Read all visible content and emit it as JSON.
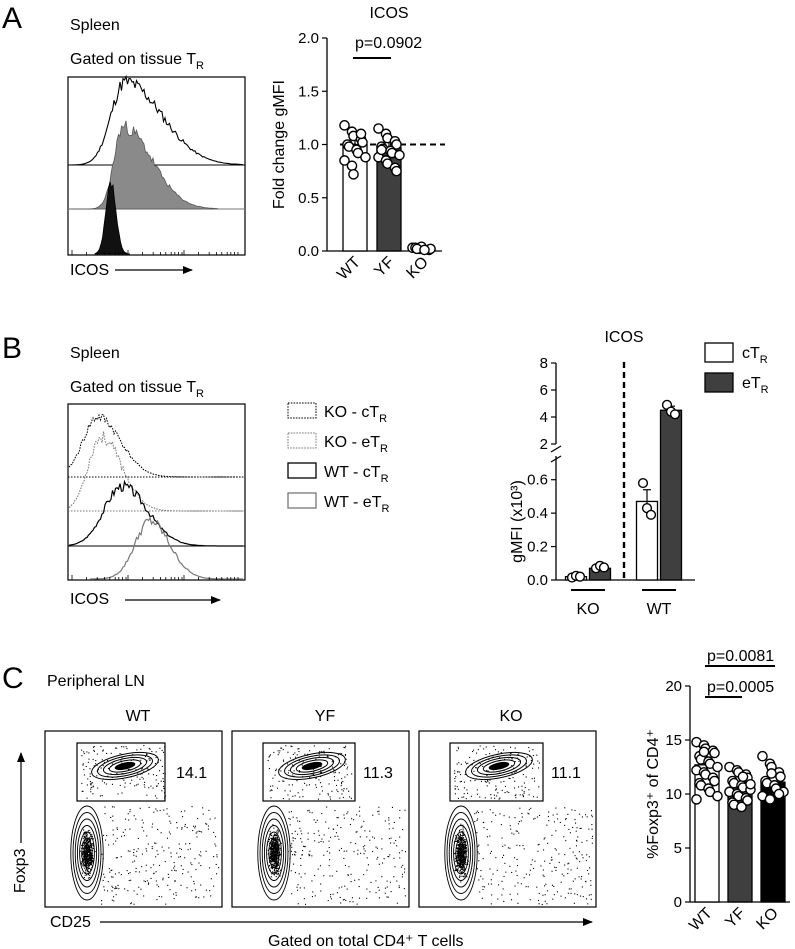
{
  "panels": {
    "A": {
      "letter": "A",
      "tissue": "Spleen",
      "gate_main": "Gated on tissue T",
      "gate_sub": "R",
      "xaxis": "ICOS"
    },
    "B": {
      "letter": "B",
      "tissue": "Spleen",
      "gate_main": "Gated on tissue T",
      "gate_sub": "R",
      "xaxis": "ICOS",
      "legend": [
        {
          "main": "KO - cT",
          "sub": "R"
        },
        {
          "main": "KO - eT",
          "sub": "R"
        },
        {
          "main": "WT - cT",
          "sub": "R"
        },
        {
          "main": "WT - eT",
          "sub": "R"
        }
      ]
    },
    "C": {
      "letter": "C",
      "tissue": "Peripheral LN",
      "plots": [
        {
          "label": "WT",
          "percent": "14.1"
        },
        {
          "label": "YF",
          "percent": "11.3"
        },
        {
          "label": "KO",
          "percent": "11.1"
        }
      ],
      "yaxis": "Foxp3",
      "xaxis": "CD25",
      "footer": "Gated on total CD4⁺ T cells"
    }
  },
  "chart_data": [
    {
      "id": "A-bar",
      "type": "bar",
      "title": "ICOS",
      "ylabel": "Fold change gMFI",
      "categories": [
        "WT",
        "YF",
        "KO"
      ],
      "values": [
        1.0,
        0.97,
        0.02
      ],
      "errors": [
        0.1,
        0.1,
        0.01
      ],
      "ylim": [
        0,
        2.0
      ],
      "yticks": [
        "0.0",
        "0.5",
        "1.0",
        "1.5",
        "2.0"
      ],
      "reference_line": 1.0,
      "annotation": {
        "text": "p=0.0902",
        "between": [
          "WT",
          "YF"
        ]
      },
      "colors": [
        "#ffffff",
        "#3f3f3f",
        "#ffffff"
      ],
      "points": [
        [
          1.18,
          1.12,
          1.08,
          1.05,
          1.02,
          1.0,
          0.98,
          0.95,
          0.92,
          0.88,
          0.85,
          0.8,
          0.72,
          1.1
        ],
        [
          1.15,
          1.1,
          1.06,
          1.03,
          1.0,
          0.98,
          0.96,
          0.94,
          0.92,
          0.9,
          0.88,
          0.85,
          0.82,
          0.78,
          0.75,
          0.95
        ],
        [
          0.03,
          0.02,
          0.04,
          0.01,
          0.02,
          0.03,
          0.02,
          0.01
        ]
      ]
    },
    {
      "id": "B-bar",
      "type": "bar",
      "title": "ICOS",
      "ylabel": "gMFI (x10³)",
      "categories": [
        "KO",
        "WT"
      ],
      "series": [
        {
          "name": "cT",
          "sub": "R",
          "values": [
            0.02,
            0.47
          ],
          "errors": [
            0.01,
            0.07
          ],
          "color": "#ffffff",
          "points": [
            [
              0.015,
              0.025,
              0.02
            ],
            [
              0.58,
              0.43,
              0.39
            ]
          ]
        },
        {
          "name": "eT",
          "sub": "R",
          "values": [
            0.07,
            4.5
          ],
          "errors": [
            0.01,
            0.3
          ],
          "color": "#3f3f3f",
          "points": [
            [
              0.07,
              0.085,
              0.075
            ],
            [
              4.9,
              4.4,
              4.2
            ]
          ]
        }
      ],
      "y_axis_lower": {
        "ylim": [
          0,
          0.7
        ],
        "ticks": [
          "0.0",
          "0.2",
          "0.4",
          "0.6"
        ]
      },
      "y_axis_upper": {
        "ylim": [
          2,
          8
        ],
        "ticks": [
          "2",
          "4",
          "6",
          "8"
        ]
      },
      "divider": "dashed line between KO and WT"
    },
    {
      "id": "C-bar",
      "type": "bar",
      "ylabel": "%Foxp3⁺ of CD4⁺",
      "categories": [
        "WT",
        "YF",
        "KO"
      ],
      "values": [
        12.7,
        10.6,
        11.1
      ],
      "errors": [
        1.0,
        1.0,
        0.9
      ],
      "ylim": [
        0,
        20
      ],
      "yticks": [
        "0",
        "5",
        "10",
        "15",
        "20"
      ],
      "colors": [
        "#ffffff",
        "#3f3f3f",
        "#000000"
      ],
      "comparisons": [
        {
          "text": "p=0.0081",
          "between": [
            "WT",
            "KO"
          ]
        },
        {
          "text": "p=0.0005",
          "between": [
            "WT",
            "YF"
          ]
        }
      ],
      "points": [
        [
          14.8,
          14.5,
          14.2,
          14.0,
          13.8,
          13.5,
          13.2,
          13.0,
          12.8,
          12.5,
          12.2,
          12.0,
          11.8,
          11.5,
          11.2,
          11.0,
          10.8,
          10.5,
          10.2,
          9.8,
          9.5,
          13.9
        ],
        [
          12.5,
          12.2,
          12.0,
          11.8,
          11.5,
          11.2,
          11.0,
          10.8,
          10.6,
          10.4,
          10.2,
          10.0,
          9.8,
          9.6,
          9.4,
          9.2,
          9.0,
          8.8,
          11.6,
          10.9
        ],
        [
          13.5,
          12.8,
          12.5,
          12.0,
          11.6,
          11.2,
          11.0,
          10.8,
          10.5,
          10.2,
          9.8,
          9.5,
          11.9,
          10.0
        ]
      ]
    }
  ]
}
